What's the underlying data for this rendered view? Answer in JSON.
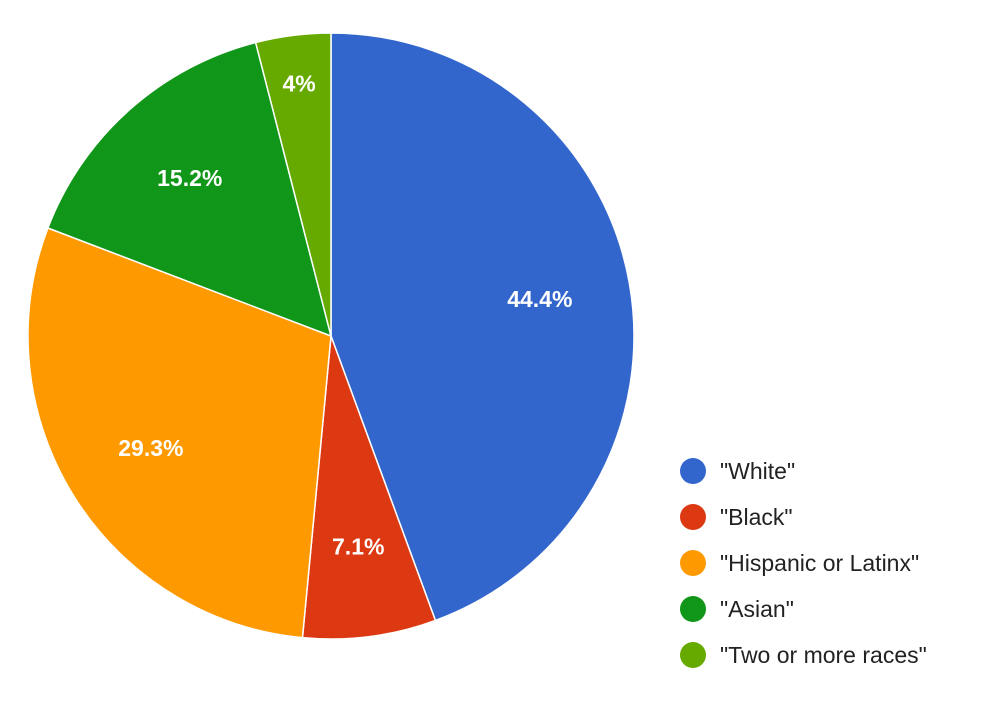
{
  "chart_data": {
    "type": "pie",
    "title": "",
    "slices": [
      {
        "label": "\"White\"",
        "value": 44.4,
        "display": "44.4%",
        "color": "#3366cc"
      },
      {
        "label": "\"Black\"",
        "value": 7.1,
        "display": "7.1%",
        "color": "#dc3912"
      },
      {
        "label": "\"Hispanic or Latinx\"",
        "value": 29.3,
        "display": "29.3%",
        "color": "#ff9900"
      },
      {
        "label": "\"Asian\"",
        "value": 15.2,
        "display": "15.2%",
        "color": "#109618"
      },
      {
        "label": "\"Two or more races\"",
        "value": 4,
        "display": "4%",
        "color": "#66aa00"
      }
    ],
    "start_angle": "12 o'clock",
    "direction": "clockwise",
    "legend_position": "bottom-right"
  },
  "legend": {
    "items": [
      {
        "label": "\"White\"",
        "color": "#3366cc"
      },
      {
        "label": "\"Black\"",
        "color": "#dc3912"
      },
      {
        "label": "\"Hispanic or Latinx\"",
        "color": "#ff9900"
      },
      {
        "label": "\"Asian\"",
        "color": "#109618"
      },
      {
        "label": "\"Two or more races\"",
        "color": "#66aa00"
      }
    ]
  }
}
